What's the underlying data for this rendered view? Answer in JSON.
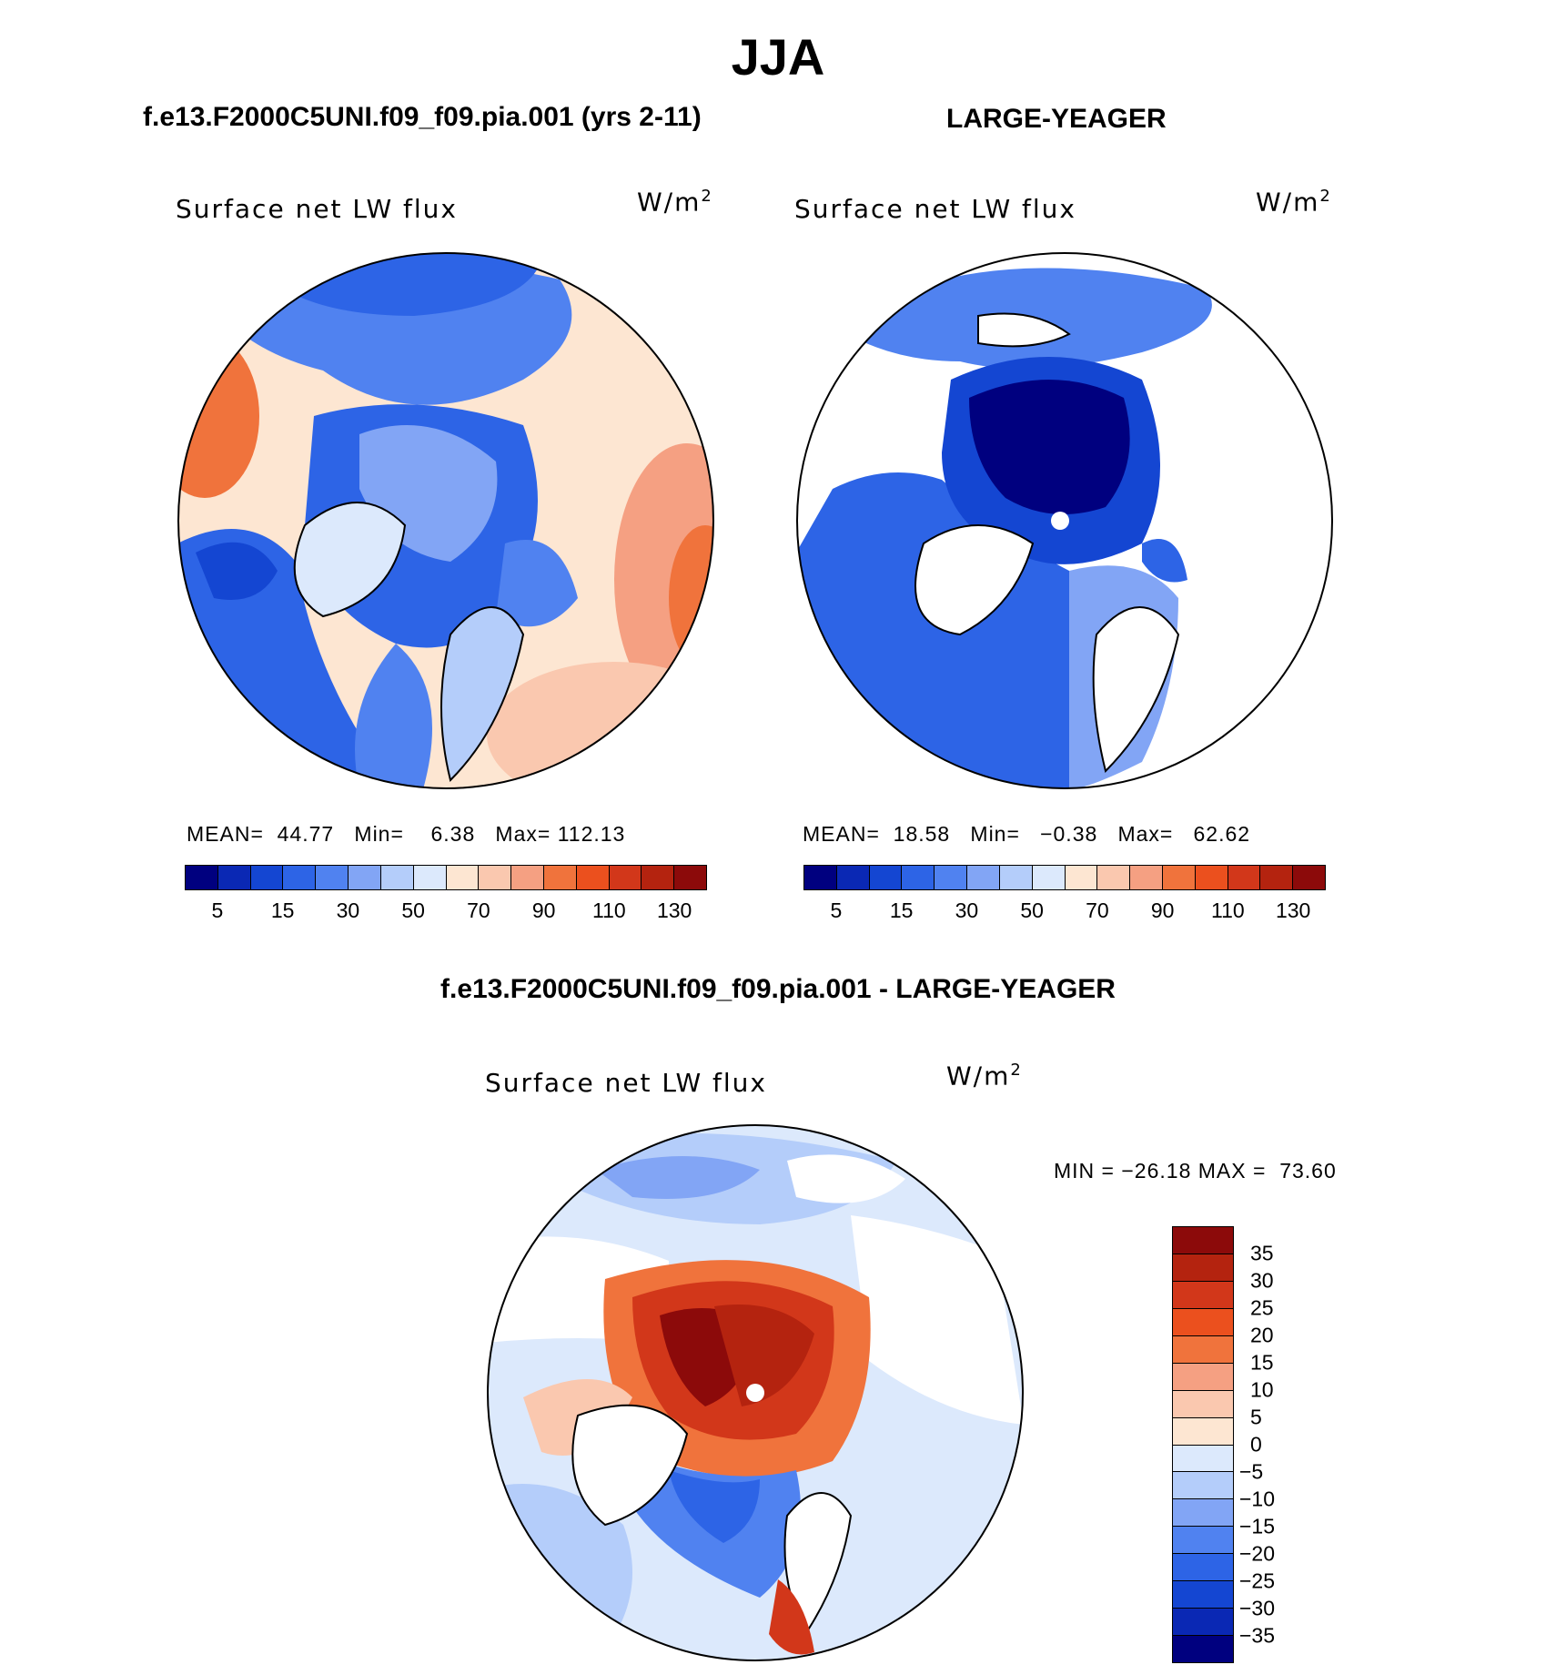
{
  "figure": {
    "title": "JJA",
    "case_label": "f.e13.F2000C5UNI.f09_f09.pia.001 (yrs 2-11)",
    "obs_label": "LARGE-YEAGER",
    "diff_label": "f.e13.F2000C5UNI.f09_f09.pia.001 - LARGE-YEAGER"
  },
  "panels": {
    "model": {
      "title": "Surface net LW flux",
      "units": "W/m",
      "units_sup": "2",
      "mean_label": "MEAN=",
      "mean": "44.77",
      "min_label": "Min=",
      "min": "6.38",
      "max_label": "Max=",
      "max": "112.13"
    },
    "obs": {
      "title": "Surface net LW flux",
      "units": "W/m",
      "units_sup": "2",
      "mean_label": "MEAN=",
      "mean": "18.58",
      "min_label": "Min=",
      "min": "−0.38",
      "max_label": "Max=",
      "max": "62.62"
    },
    "diff": {
      "title": "Surface net LW flux",
      "units": "W/m",
      "units_sup": "2",
      "minmax": "MIN = −26.18 MAX =  73.60"
    }
  },
  "colorbar_main": {
    "ticks": [
      "5",
      "15",
      "30",
      "50",
      "70",
      "90",
      "110",
      "130"
    ],
    "colors": [
      "#00007f",
      "#0a28b4",
      "#1446d2",
      "#2d64e6",
      "#5082f0",
      "#82a5f5",
      "#b4cdfa",
      "#dce9fc",
      "#fde6d2",
      "#fac8af",
      "#f5a082",
      "#f0733c",
      "#eb501e",
      "#d2371a",
      "#b4230f",
      "#8c0a0a"
    ]
  },
  "colorbar_diff": {
    "ticks": [
      "35",
      "30",
      "25",
      "20",
      "15",
      "10",
      "5",
      "0",
      "−5",
      "−10",
      "−15",
      "−20",
      "−25",
      "−30",
      "−35"
    ],
    "colors": [
      "#8c0a0a",
      "#b4230f",
      "#d2371a",
      "#eb501e",
      "#f0733c",
      "#f5a082",
      "#fac8af",
      "#fde6d2",
      "#dce9fc",
      "#b4cdfa",
      "#82a5f5",
      "#5082f0",
      "#2d64e6",
      "#1446d2",
      "#0a28b4",
      "#00007f"
    ]
  }
}
